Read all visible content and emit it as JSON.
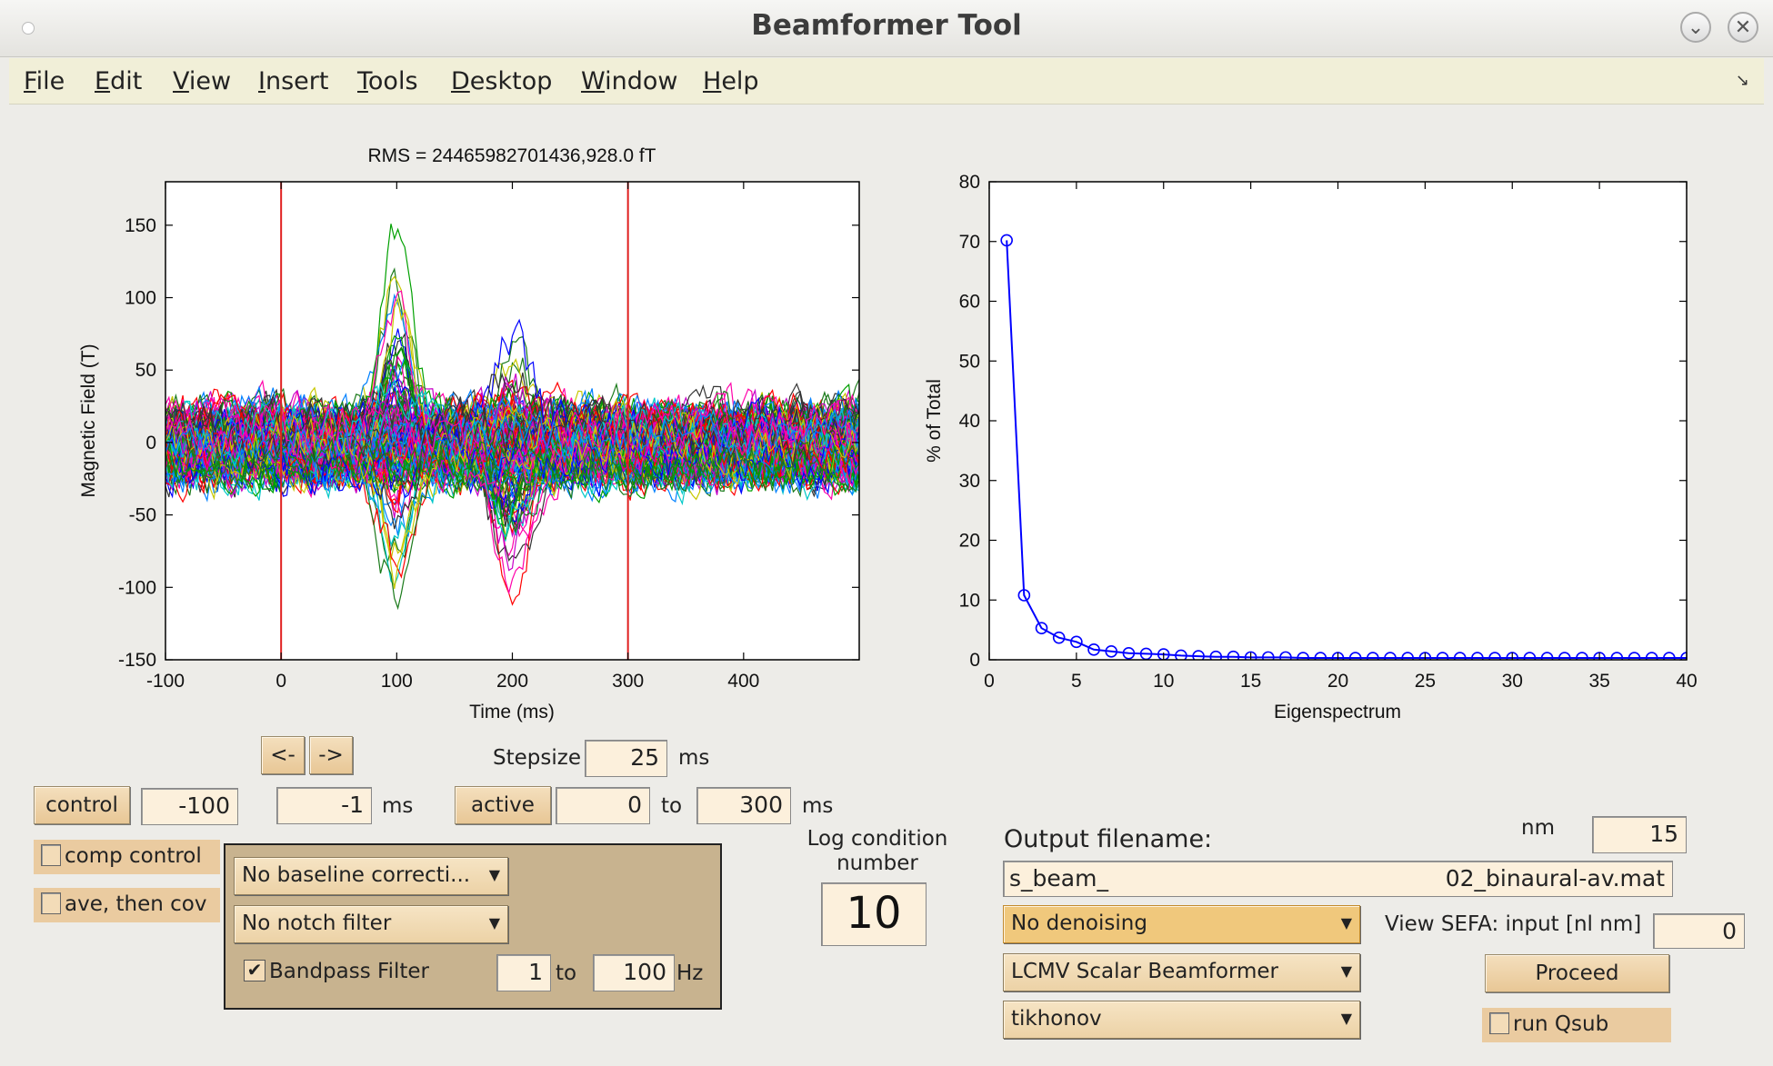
{
  "window": {
    "title": "Beamformer Tool",
    "minimize_glyph": "⌄",
    "close_glyph": "✕"
  },
  "menu": [
    {
      "mnemonic": "F",
      "rest": "ile"
    },
    {
      "mnemonic": "E",
      "rest": "dit"
    },
    {
      "mnemonic": "V",
      "rest": "iew"
    },
    {
      "mnemonic": "I",
      "rest": "nsert"
    },
    {
      "mnemonic": "T",
      "rest": "ools"
    },
    {
      "mnemonic": "D",
      "rest": "esktop"
    },
    {
      "mnemonic": "W",
      "rest": "indow"
    },
    {
      "mnemonic": "H",
      "rest": "elp"
    }
  ],
  "dock_icon": "dock-arrow-icon",
  "chart_data": [
    {
      "type": "line",
      "title": "RMS = 24465982701436,928.0 fT",
      "xlabel": "Time (ms)",
      "ylabel": "Magnetic Field (T)",
      "xlim": [
        -100,
        500
      ],
      "ylim": [
        -150,
        180
      ],
      "xticks": [
        -100,
        0,
        100,
        200,
        300,
        400
      ],
      "yticks": [
        -150,
        -100,
        -50,
        0,
        50,
        100,
        150
      ],
      "vertical_markers_ms": [
        0,
        300
      ],
      "marker_color": "#e02020",
      "series_count": 150,
      "note_series": "Overlaid sensor traces; peaks near 100 ms (up to ~175) and troughs near 200 ms (down to ~-150).",
      "peak_events": [
        {
          "center_ms": 100,
          "width_ms": 18,
          "amplitude_range": [
            -120,
            175
          ]
        },
        {
          "center_ms": 200,
          "width_ms": 22,
          "amplitude_range": [
            -150,
            105
          ]
        }
      ],
      "grid": false
    },
    {
      "type": "line",
      "xlabel": "Eigenspectrum",
      "ylabel": "% of Total",
      "xlim": [
        0,
        40
      ],
      "ylim": [
        0,
        80
      ],
      "xticks": [
        0,
        5,
        10,
        15,
        20,
        25,
        30,
        35,
        40
      ],
      "yticks": [
        0,
        10,
        20,
        30,
        40,
        50,
        60,
        70,
        80
      ],
      "color": "#0000ff",
      "marker": "circle",
      "x": [
        1,
        2,
        3,
        4,
        5,
        6,
        7,
        8,
        9,
        10,
        11,
        12,
        13,
        14,
        15,
        16,
        17,
        18,
        19,
        20,
        21,
        22,
        23,
        24,
        25,
        26,
        27,
        28,
        29,
        30,
        31,
        32,
        33,
        34,
        35,
        36,
        37,
        38,
        39,
        40
      ],
      "values": [
        70.2,
        10.8,
        5.3,
        3.7,
        3.0,
        1.7,
        1.4,
        1.1,
        1.0,
        0.9,
        0.7,
        0.6,
        0.5,
        0.5,
        0.4,
        0.4,
        0.4,
        0.3,
        0.3,
        0.3,
        0.3,
        0.3,
        0.3,
        0.3,
        0.3,
        0.3,
        0.3,
        0.3,
        0.3,
        0.3,
        0.3,
        0.3,
        0.3,
        0.3,
        0.3,
        0.3,
        0.3,
        0.3,
        0.3,
        0.3
      ],
      "grid": false
    }
  ],
  "controls": {
    "nav_prev": "<-",
    "nav_next": "->",
    "stepsize_label": "Stepsize",
    "stepsize_value": "25",
    "ms": "ms",
    "control_button": "control",
    "control_start": "-100",
    "control_end": "-1",
    "active_button": "active",
    "active_start": "0",
    "to": "to",
    "active_end": "300",
    "comp_control": "comp control",
    "ave_then_cov": "ave, then cov",
    "baseline_select": "No baseline correcti...",
    "notch_select": "No notch filter",
    "bandpass_label": "Bandpass Filter",
    "bandpass_checked": true,
    "bandpass_low": "1",
    "bandpass_high": "100",
    "hz": "Hz",
    "log_condition_label_1": "Log condition",
    "log_condition_label_2": "number",
    "log_condition_value": "10",
    "output_filename_label": "Output filename:",
    "output_filename_prefix": "s_beam_",
    "output_filename_suffix": "02_binaural-av.mat",
    "nm_label": "nm",
    "nm_value": "15",
    "denoising_select": "No denoising",
    "beamformer_select": "LCMV Scalar Beamformer",
    "regularization_select": "tikhonov",
    "sefa_label": "View SEFA: input [nl nm]",
    "sefa_value": "0",
    "proceed_button": "Proceed",
    "run_qsub": "run Qsub"
  }
}
